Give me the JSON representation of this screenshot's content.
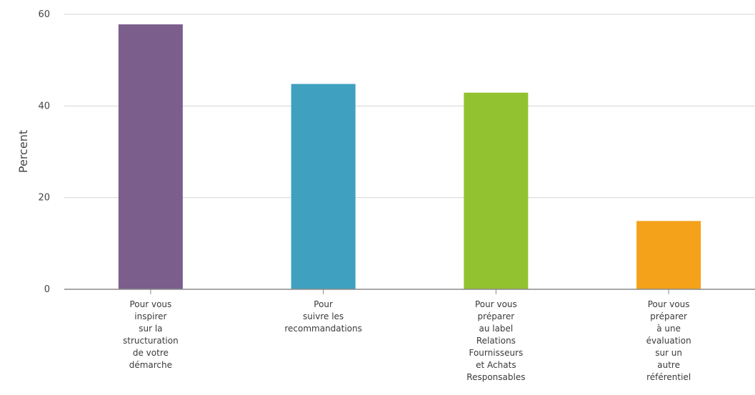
{
  "chart_data": {
    "type": "bar",
    "title": "",
    "xlabel": "",
    "ylabel": "Percent",
    "ylim": [
      0,
      60
    ],
    "yticks": [
      0,
      20,
      40,
      60
    ],
    "grid": true,
    "categories": [
      [
        "Pour vous",
        "inspirer",
        "sur la",
        "structuration",
        "de votre",
        "démarche"
      ],
      [
        "Pour",
        "suivre les",
        "recommandations"
      ],
      [
        "Pour vous",
        "préparer",
        "au label",
        "Relations",
        "Fournisseurs",
        "et Achats",
        "Responsables"
      ],
      [
        "Pour vous",
        "préparer",
        "à une",
        "évaluation",
        "sur un",
        "autre",
        "référentiel"
      ]
    ],
    "values": [
      57.8,
      44.8,
      42.9,
      14.9
    ],
    "colors": [
      "#7b5e8c",
      "#3fa0c0",
      "#93c230",
      "#f3a21a"
    ]
  }
}
